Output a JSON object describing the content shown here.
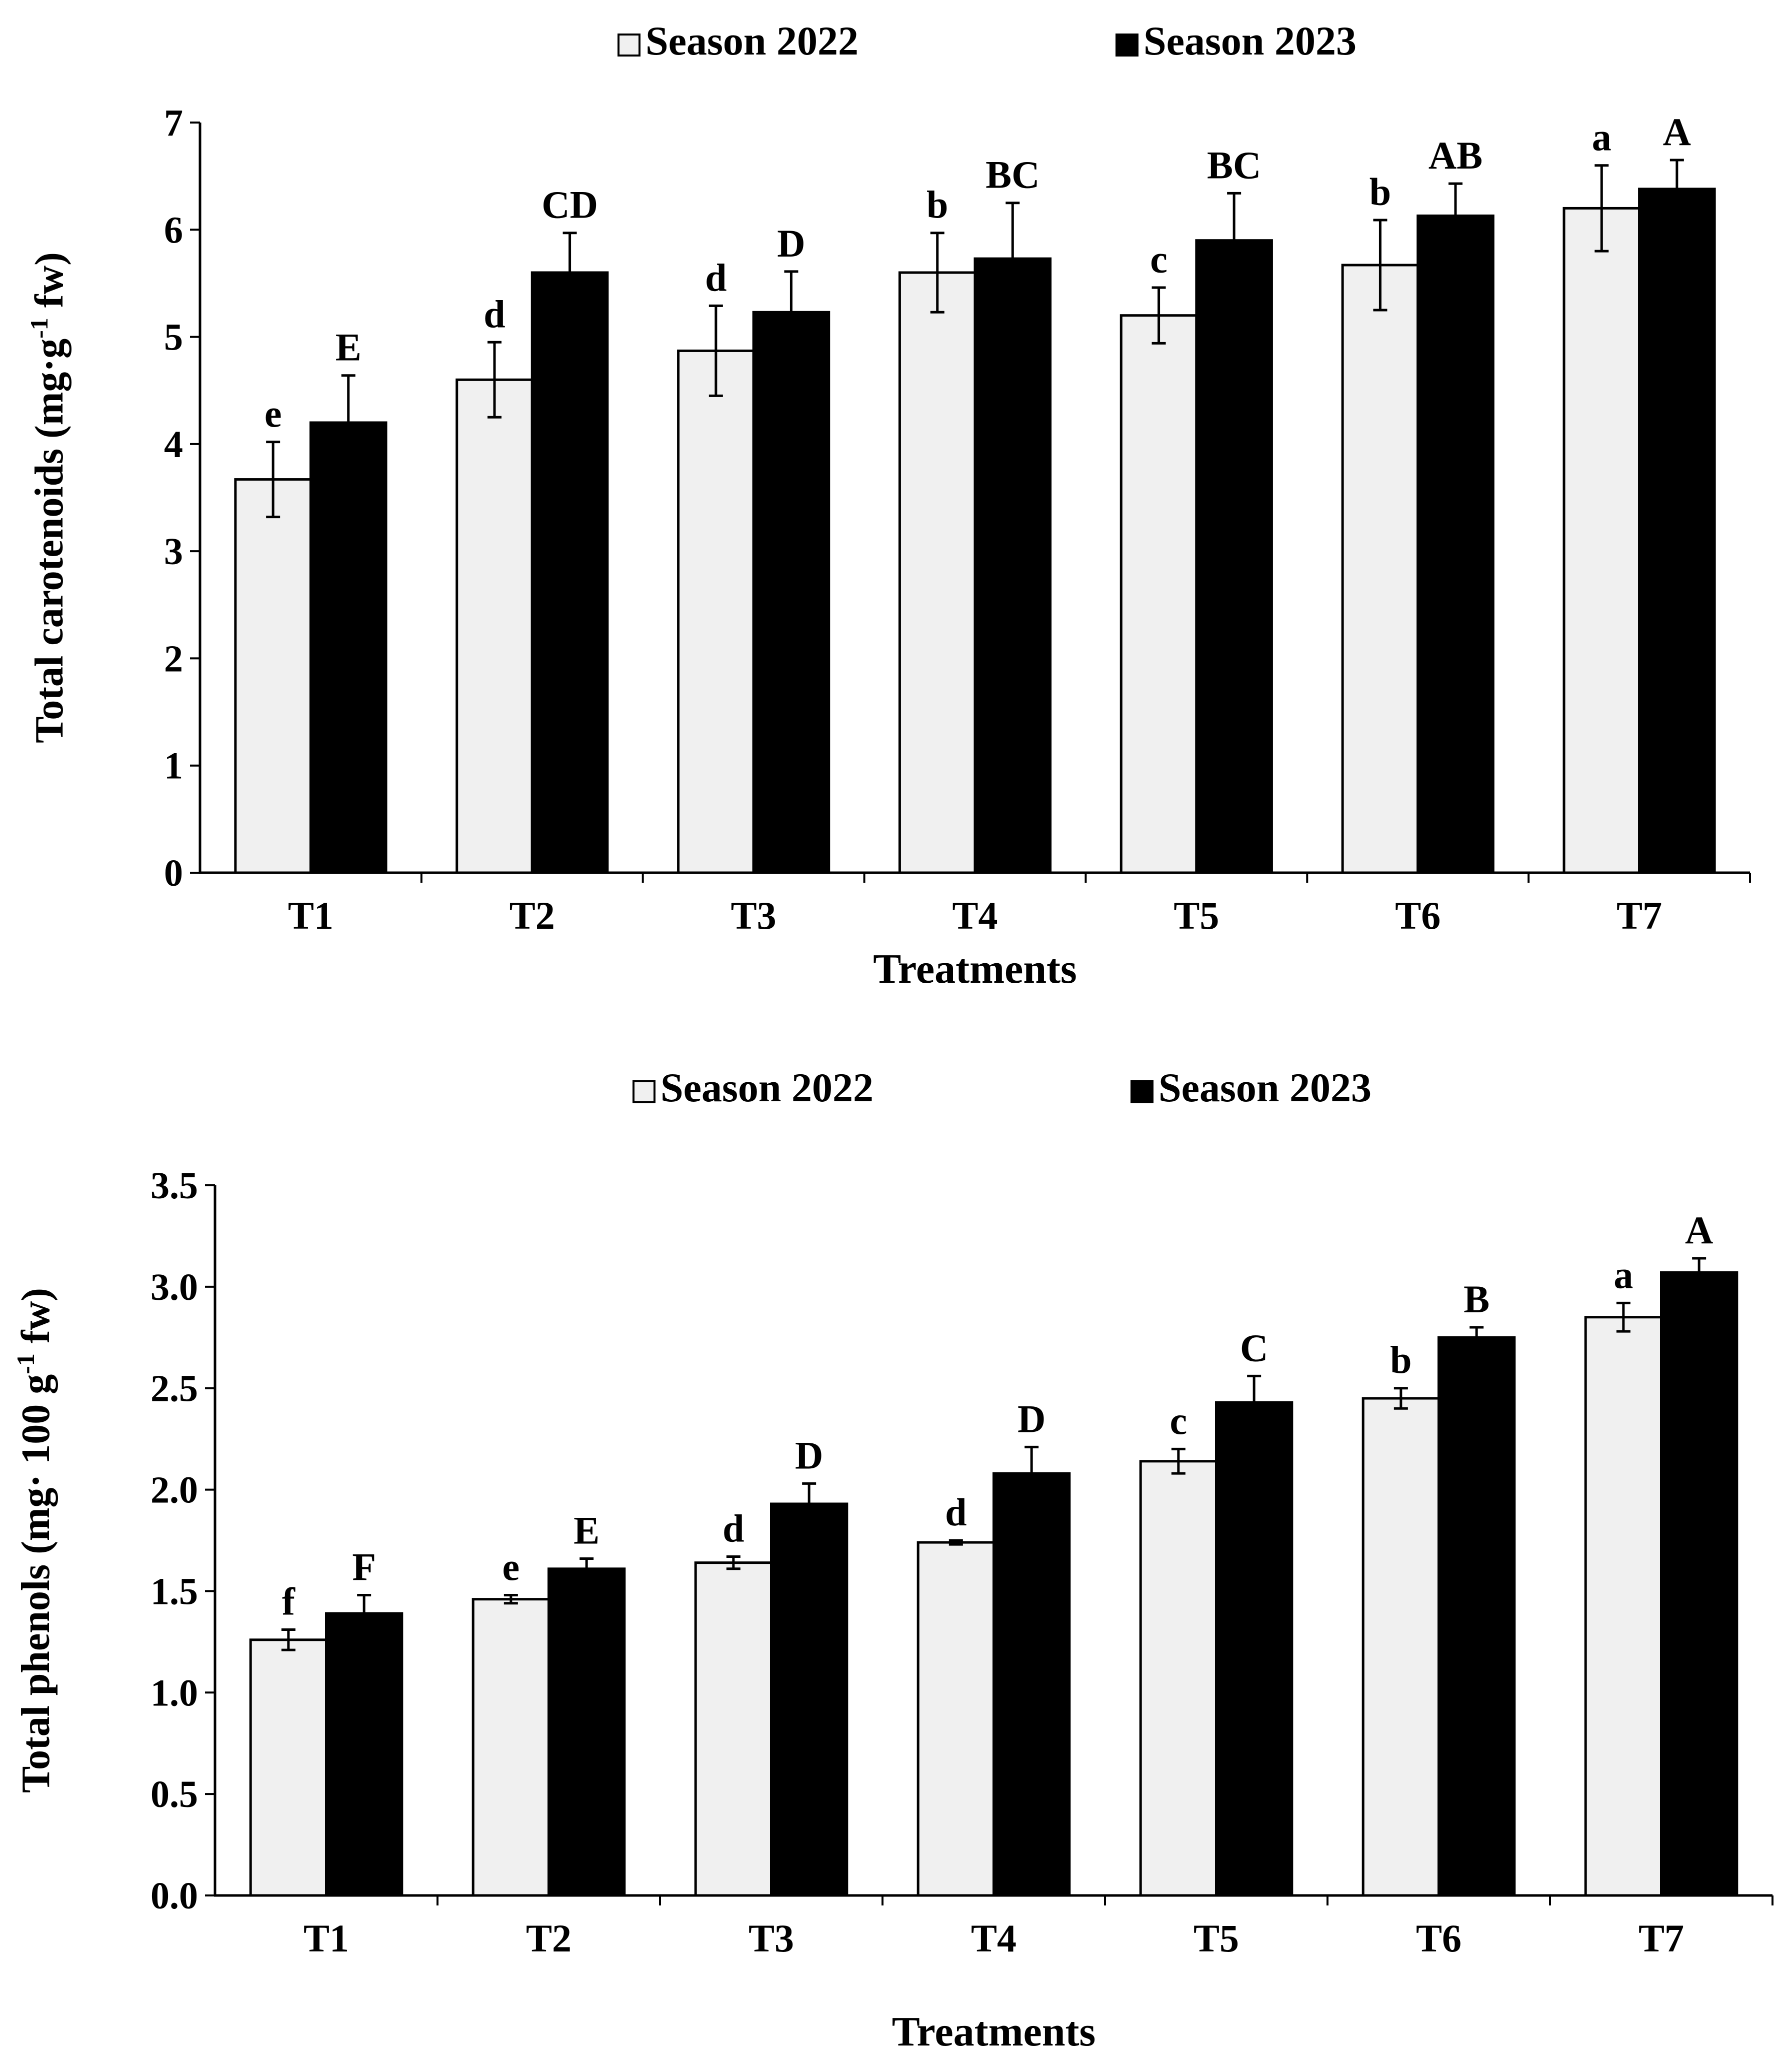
{
  "chart_data": [
    {
      "type": "bar",
      "title": "",
      "xlabel": "Treatments",
      "ylabel_main": "Total carotenoids (mg·g",
      "ylabel_sup": "-1",
      "ylabel_tail": " fw)",
      "categories": [
        "T1",
        "T2",
        "T3",
        "T4",
        "T5",
        "T6",
        "T7"
      ],
      "ylim": [
        0,
        7
      ],
      "yticks": [
        0,
        1,
        2,
        3,
        4,
        5,
        6,
        7
      ],
      "ytick_labels": [
        "0",
        "1",
        "2",
        "3",
        "4",
        "5",
        "6",
        "7"
      ],
      "legend_position": "top",
      "series": [
        {
          "name": "Season 2022",
          "color": "#f0f0f0",
          "values": [
            3.67,
            4.6,
            4.87,
            5.6,
            5.2,
            5.67,
            6.2
          ],
          "errors": [
            0.35,
            0.35,
            0.42,
            0.37,
            0.26,
            0.42,
            0.4
          ],
          "letters": [
            "e",
            "d",
            "d",
            "b",
            "c",
            "b",
            "a"
          ]
        },
        {
          "name": "Season 2023",
          "color": "#000000",
          "values": [
            4.2,
            5.6,
            5.23,
            5.73,
            5.9,
            6.13,
            6.38
          ],
          "errors": [
            0.44,
            0.37,
            0.38,
            0.52,
            0.44,
            0.3,
            0.27
          ],
          "letters": [
            "E",
            "CD",
            "D",
            "BC",
            "BC",
            "AB",
            "A"
          ]
        }
      ]
    },
    {
      "type": "bar",
      "title": "",
      "xlabel": "Treatments",
      "ylabel_main": "Total phenols (mg· 100 g",
      "ylabel_sup": "-1",
      "ylabel_tail": " fw)",
      "categories": [
        "T1",
        "T2",
        "T3",
        "T4",
        "T5",
        "T6",
        "T7"
      ],
      "ylim": [
        0,
        3.5
      ],
      "yticks": [
        0,
        0.5,
        1,
        1.5,
        2,
        2.5,
        3,
        3.5
      ],
      "ytick_labels": [
        "0.0",
        "0.5",
        "1.0",
        "1.5",
        "2.0",
        "2.5",
        "3.0",
        "3.5"
      ],
      "legend_position": "top",
      "series": [
        {
          "name": "Season 2022",
          "color": "#f0f0f0",
          "values": [
            1.26,
            1.46,
            1.64,
            1.74,
            2.14,
            2.45,
            2.85
          ],
          "errors": [
            0.05,
            0.02,
            0.03,
            0.01,
            0.06,
            0.05,
            0.07
          ],
          "letters": [
            "f",
            "e",
            "d",
            "d",
            "c",
            "b",
            "a"
          ]
        },
        {
          "name": "Season 2023",
          "color": "#000000",
          "values": [
            1.39,
            1.61,
            1.93,
            2.08,
            2.43,
            2.75,
            3.07
          ],
          "errors": [
            0.09,
            0.05,
            0.1,
            0.13,
            0.13,
            0.05,
            0.07
          ],
          "letters": [
            "F",
            "E",
            "D",
            "D",
            "C",
            "B",
            "A"
          ]
        }
      ]
    }
  ]
}
